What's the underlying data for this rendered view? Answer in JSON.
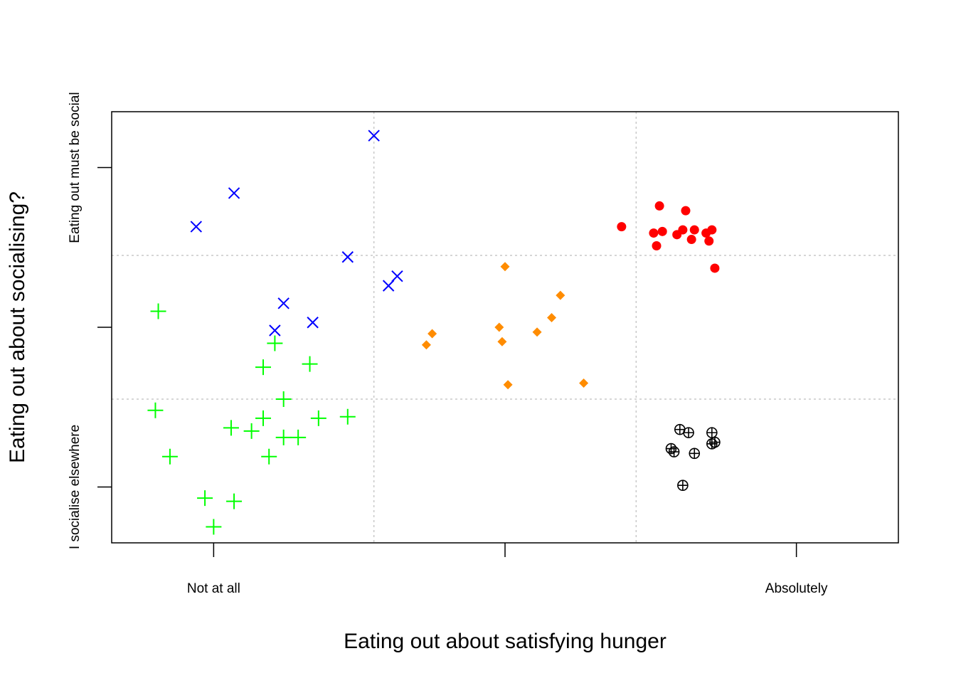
{
  "chart_data": {
    "type": "scatter",
    "title": "",
    "xlabel": "Eating out about satisfying hunger",
    "ylabel": "Eating out about socialising?",
    "xlim": [
      -0.35,
      2.35
    ],
    "ylim": [
      -0.35,
      2.35
    ],
    "x_ticks": [
      0,
      1,
      2
    ],
    "x_tick_labels": [
      "Not at all",
      "",
      "Absolutely"
    ],
    "y_ticks": [
      0,
      1,
      2
    ],
    "y_tick_labels": [
      "I socialise elsewhere",
      "",
      "Eating out must be social"
    ],
    "grid": {
      "x": [
        0.55,
        1.45
      ],
      "y": [
        0.55,
        1.45
      ],
      "style": "dotted"
    },
    "series": [
      {
        "color": "#00ff00",
        "marker": "plus",
        "points": [
          [
            -0.19,
            1.1
          ],
          [
            -0.2,
            0.48
          ],
          [
            -0.15,
            0.19
          ],
          [
            -0.03,
            -0.07
          ],
          [
            0.07,
            -0.09
          ],
          [
            0.0,
            -0.25
          ],
          [
            0.06,
            0.37
          ],
          [
            0.13,
            0.35
          ],
          [
            0.17,
            0.43
          ],
          [
            0.19,
            0.19
          ],
          [
            0.24,
            0.55
          ],
          [
            0.24,
            0.31
          ],
          [
            0.29,
            0.31
          ],
          [
            0.17,
            0.75
          ],
          [
            0.21,
            0.9
          ],
          [
            0.33,
            0.77
          ],
          [
            0.36,
            0.43
          ],
          [
            0.46,
            0.44
          ]
        ]
      },
      {
        "color": "#0000ff",
        "marker": "cross",
        "points": [
          [
            -0.06,
            1.63
          ],
          [
            0.07,
            1.84
          ],
          [
            0.55,
            2.2
          ],
          [
            0.46,
            1.44
          ],
          [
            0.6,
            1.26
          ],
          [
            0.63,
            1.32
          ],
          [
            0.24,
            1.15
          ],
          [
            0.21,
            0.98
          ],
          [
            0.34,
            1.03
          ]
        ]
      },
      {
        "color": "#ff8c00",
        "marker": "diamond",
        "points": [
          [
            1.0,
            1.38
          ],
          [
            1.19,
            1.2
          ],
          [
            1.16,
            1.06
          ],
          [
            1.11,
            0.97
          ],
          [
            0.98,
            1.0
          ],
          [
            0.99,
            0.91
          ],
          [
            0.75,
            0.96
          ],
          [
            0.73,
            0.89
          ],
          [
            1.01,
            0.64
          ],
          [
            1.27,
            0.65
          ]
        ]
      },
      {
        "color": "#ff0000",
        "marker": "circle",
        "points": [
          [
            1.4,
            1.63
          ],
          [
            1.53,
            1.76
          ],
          [
            1.62,
            1.73
          ],
          [
            1.51,
            1.59
          ],
          [
            1.54,
            1.6
          ],
          [
            1.59,
            1.58
          ],
          [
            1.61,
            1.61
          ],
          [
            1.64,
            1.55
          ],
          [
            1.65,
            1.61
          ],
          [
            1.69,
            1.59
          ],
          [
            1.7,
            1.54
          ],
          [
            1.71,
            1.61
          ],
          [
            1.52,
            1.51
          ],
          [
            1.72,
            1.37
          ]
        ]
      },
      {
        "color": "#000000",
        "marker": "circle-plus",
        "points": [
          [
            1.6,
            0.36
          ],
          [
            1.63,
            0.34
          ],
          [
            1.71,
            0.34
          ],
          [
            1.57,
            0.24
          ],
          [
            1.58,
            0.22
          ],
          [
            1.65,
            0.21
          ],
          [
            1.72,
            0.28
          ],
          [
            1.71,
            0.27
          ],
          [
            1.61,
            0.01
          ]
        ]
      }
    ]
  }
}
